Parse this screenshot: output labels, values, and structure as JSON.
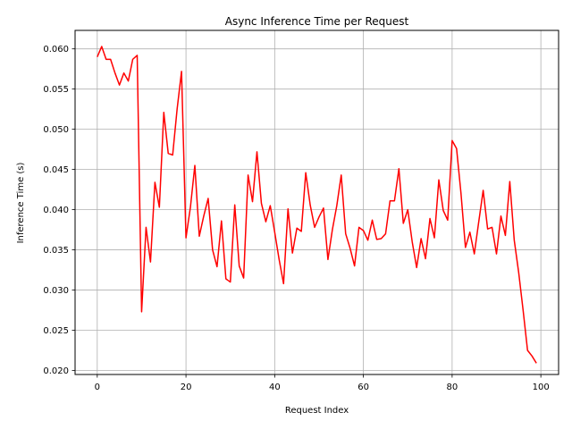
{
  "chart_data": {
    "type": "line",
    "title": "Async Inference Time per Request",
    "xlabel": "Request Index",
    "ylabel": "Inference Time (s)",
    "xlim": [
      -5,
      104
    ],
    "ylim": [
      0.0195,
      0.0623
    ],
    "xticks": [
      0,
      20,
      40,
      60,
      80,
      100
    ],
    "yticks": [
      0.02,
      0.025,
      0.03,
      0.035,
      0.04,
      0.045,
      0.05,
      0.055,
      0.06
    ],
    "ytick_labels": [
      "0.020",
      "0.025",
      "0.030",
      "0.035",
      "0.040",
      "0.045",
      "0.050",
      "0.055",
      "0.060"
    ],
    "grid": true,
    "series": [
      {
        "color": "#ff0000",
        "x": [
          0,
          1,
          2,
          3,
          4,
          5,
          6,
          7,
          8,
          9,
          10,
          11,
          12,
          13,
          14,
          15,
          16,
          17,
          18,
          19,
          20,
          21,
          22,
          23,
          24,
          25,
          26,
          27,
          28,
          29,
          30,
          31,
          32,
          33,
          34,
          35,
          36,
          37,
          38,
          39,
          40,
          41,
          42,
          43,
          44,
          45,
          46,
          47,
          48,
          49,
          50,
          51,
          52,
          53,
          54,
          55,
          56,
          57,
          58,
          59,
          60,
          61,
          62,
          63,
          64,
          65,
          66,
          67,
          68,
          69,
          70,
          71,
          72,
          73,
          74,
          75,
          76,
          77,
          78,
          79,
          80,
          81,
          82,
          83,
          84,
          85,
          86,
          87,
          88,
          89,
          90,
          91,
          92,
          93,
          94,
          95,
          96,
          97,
          98,
          99
        ],
        "values": [
          0.059,
          0.0603,
          0.0587,
          0.0587,
          0.057,
          0.0555,
          0.057,
          0.056,
          0.0587,
          0.0592,
          0.0273,
          0.0378,
          0.0335,
          0.0434,
          0.0403,
          0.0521,
          0.047,
          0.0468,
          0.0525,
          0.0572,
          0.0365,
          0.0403,
          0.0455,
          0.0367,
          0.0392,
          0.0414,
          0.035,
          0.0329,
          0.0386,
          0.0314,
          0.031,
          0.0406,
          0.033,
          0.0315,
          0.0443,
          0.041,
          0.0472,
          0.0408,
          0.0385,
          0.0405,
          0.0372,
          0.0338,
          0.0308,
          0.0401,
          0.0346,
          0.0377,
          0.0373,
          0.0446,
          0.0406,
          0.0378,
          0.0391,
          0.0402,
          0.0338,
          0.0375,
          0.0405,
          0.0443,
          0.037,
          0.0352,
          0.033,
          0.0378,
          0.0374,
          0.0362,
          0.0387,
          0.0363,
          0.0364,
          0.037,
          0.0411,
          0.0411,
          0.0451,
          0.0383,
          0.04,
          0.036,
          0.0328,
          0.0364,
          0.0339,
          0.0389,
          0.0365,
          0.0437,
          0.0399,
          0.0387,
          0.0486,
          0.0476,
          0.042,
          0.0353,
          0.0372,
          0.0345,
          0.0385,
          0.0424,
          0.0376,
          0.0378,
          0.0345,
          0.0392,
          0.0368,
          0.0435,
          0.0362,
          0.0322,
          0.0275,
          0.0225,
          0.0218,
          0.0209
        ]
      }
    ]
  }
}
